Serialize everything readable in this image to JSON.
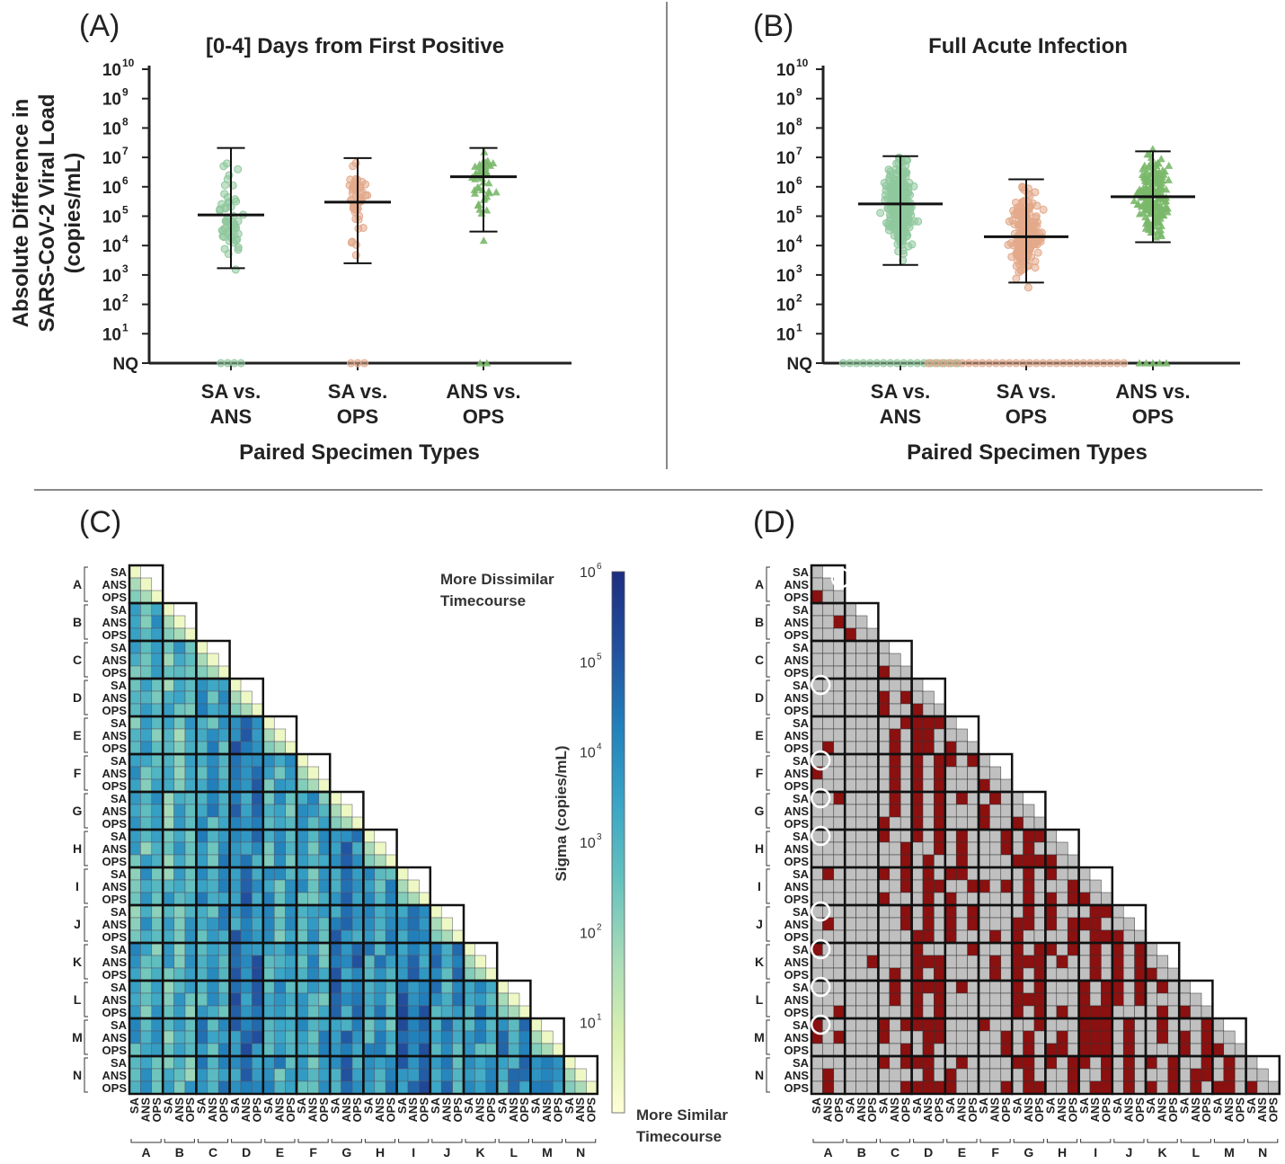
{
  "panels": {
    "a_label": "(A)",
    "b_label": "(B)",
    "c_label": "(C)",
    "d_label": "(D)"
  },
  "chart_data": [
    {
      "type": "scatter",
      "title": "[0-4] Days from First Positive",
      "xlabel": "Paired Specimen Types",
      "ylabel_lines": [
        "Absolute Difference in",
        "SARS-CoV-2 Viral Load",
        "(copies/mL)"
      ],
      "y_scale": "log",
      "ylim": [
        1,
        10000000000
      ],
      "y_bottom_label": "NQ",
      "y_ticks": [
        "10",
        "10",
        "10",
        "10",
        "10",
        "10",
        "10",
        "10",
        "10",
        "10"
      ],
      "y_tick_exps": [
        "1",
        "2",
        "3",
        "4",
        "5",
        "6",
        "7",
        "8",
        "9",
        "10"
      ],
      "categories": [
        {
          "line1": "SA vs.",
          "line2": "ANS",
          "color": "#8fc89d",
          "marker": "circle",
          "median": 110000,
          "q1": 1700,
          "q3": 21000000,
          "n": 55,
          "nq_count": 4,
          "min_exp": 2.6,
          "max_exp": 9.6
        },
        {
          "line1": "SA vs.",
          "line2": "OPS",
          "color": "#e3a98a",
          "marker": "circle",
          "median": 300000,
          "q1": 2500,
          "q3": 9500000,
          "n": 50,
          "nq_count": 3,
          "min_exp": 1.8,
          "max_exp": 9.6
        },
        {
          "line1": "ANS vs.",
          "line2": "OPS",
          "color": "#7ab86a",
          "marker": "triangle",
          "median": 2200000,
          "q1": 30000,
          "q3": 21000000,
          "n": 45,
          "nq_count": 2,
          "min_exp": 2.5,
          "max_exp": 9.5
        }
      ]
    },
    {
      "type": "scatter",
      "title": "Full Acute Infection",
      "xlabel": "Paired Specimen Types",
      "y_scale": "log",
      "ylim": [
        1,
        10000000000
      ],
      "y_bottom_label": "NQ",
      "y_ticks": [
        "10",
        "10",
        "10",
        "10",
        "10",
        "10",
        "10",
        "10",
        "10",
        "10"
      ],
      "y_tick_exps": [
        "1",
        "2",
        "3",
        "4",
        "5",
        "6",
        "7",
        "8",
        "9",
        "10"
      ],
      "categories": [
        {
          "line1": "SA vs.",
          "line2": "ANS",
          "color": "#8fc89d",
          "marker": "circle",
          "median": 260000,
          "q1": 2200,
          "q3": 11000000,
          "n": 230,
          "nq_count": 18,
          "min_exp": 2.3,
          "max_exp": 9.7
        },
        {
          "line1": "SA vs.",
          "line2": "OPS",
          "color": "#e3a98a",
          "marker": "circle",
          "median": 20000,
          "q1": 550,
          "q3": 1800000,
          "n": 200,
          "nq_count": 30,
          "min_exp": 0.9,
          "max_exp": 9.6
        },
        {
          "line1": "ANS vs.",
          "line2": "OPS",
          "color": "#7ab86a",
          "marker": "triangle",
          "median": 460000,
          "q1": 13000,
          "q3": 16000000,
          "n": 200,
          "nq_count": 5,
          "min_exp": 1.6,
          "max_exp": 9.7
        }
      ]
    },
    {
      "type": "heatmap",
      "groups": [
        "A",
        "B",
        "C",
        "D",
        "E",
        "F",
        "G",
        "H",
        "I",
        "J",
        "K",
        "L",
        "M",
        "N"
      ],
      "subtypes": [
        "SA",
        "ANS",
        "OPS"
      ],
      "colorbar_label": "Sigma (copies/mL)",
      "colorbar_top_text": [
        "More Dissimilar",
        "Timecourse"
      ],
      "colorbar_bottom_text": [
        "More Similar",
        "Timecourse"
      ],
      "colorbar_ticks": [
        "10",
        "10",
        "10",
        "10",
        "10",
        "10"
      ],
      "colorbar_tick_exps": [
        "6",
        "5",
        "4",
        "3",
        "2",
        "1"
      ],
      "color_scale": "log",
      "range": [
        1,
        1000000
      ],
      "palette": [
        "#ffffd6",
        "#d9f0b0",
        "#a8dbb8",
        "#66c2be",
        "#3aa5c6",
        "#2180bb",
        "#22509e",
        "#1d2d80"
      ]
    },
    {
      "type": "heatmap",
      "groups": [
        "A",
        "B",
        "C",
        "D",
        "E",
        "F",
        "G",
        "H",
        "I",
        "J",
        "K",
        "L",
        "M",
        "N"
      ],
      "subtypes": [
        "SA",
        "ANS",
        "OPS"
      ],
      "colors": {
        "significant": "#8b1010",
        "not_significant": "#c0c0c0"
      },
      "circled_rows": [
        1,
        9,
        15,
        18,
        21,
        27,
        30,
        33,
        36
      ]
    }
  ]
}
